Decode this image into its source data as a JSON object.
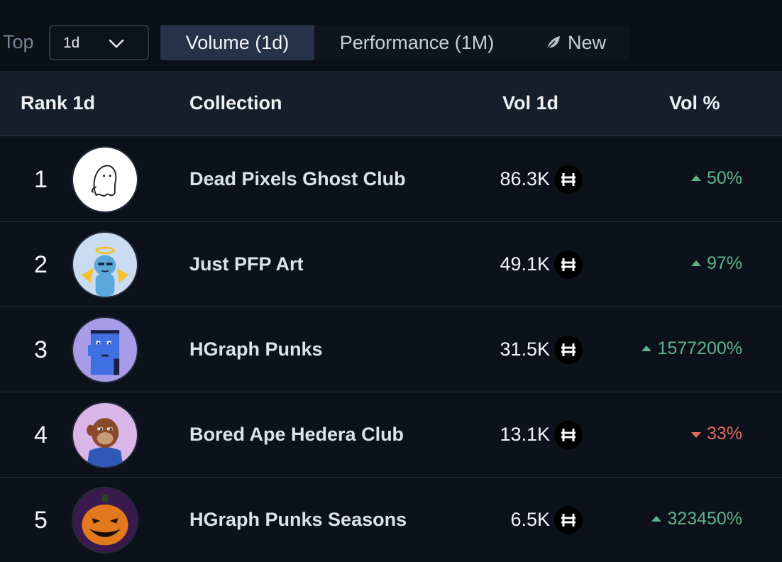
{
  "filters": {
    "top_label": "Top",
    "period_select": {
      "value": "1d",
      "icon": "chevron-down-icon"
    },
    "tabs": [
      {
        "label": "Volume (1d)",
        "active": true
      },
      {
        "label": "Performance (1M)",
        "active": false
      },
      {
        "label": "New",
        "icon": "leaf-icon",
        "active": false
      }
    ]
  },
  "table": {
    "headers": {
      "rank": "Rank 1d",
      "collection": "Collection",
      "volume": "Vol 1d",
      "volume_pct": "Vol %"
    },
    "currency_icon": "hbar-icon",
    "rows": [
      {
        "rank": "1",
        "name": "Dead Pixels Ghost Club",
        "volume": "86.3K",
        "change": "50%",
        "direction": "up",
        "avatar": "ghost"
      },
      {
        "rank": "2",
        "name": "Just PFP Art",
        "volume": "49.1K",
        "change": "97%",
        "direction": "up",
        "avatar": "angel"
      },
      {
        "rank": "3",
        "name": "HGraph Punks",
        "volume": "31.5K",
        "change": "1577200%",
        "direction": "up",
        "avatar": "punk"
      },
      {
        "rank": "4",
        "name": "Bored Ape Hedera Club",
        "volume": "13.1K",
        "change": "33%",
        "direction": "down",
        "avatar": "ape"
      },
      {
        "rank": "5",
        "name": "HGraph Punks Seasons",
        "volume": "6.5K",
        "change": "323450%",
        "direction": "up",
        "avatar": "pumpkin"
      }
    ]
  },
  "colors": {
    "positive": "#5fb38a",
    "negative": "#e26a5c",
    "active_tab": "#25324a",
    "header_bg": "#161d2b"
  }
}
